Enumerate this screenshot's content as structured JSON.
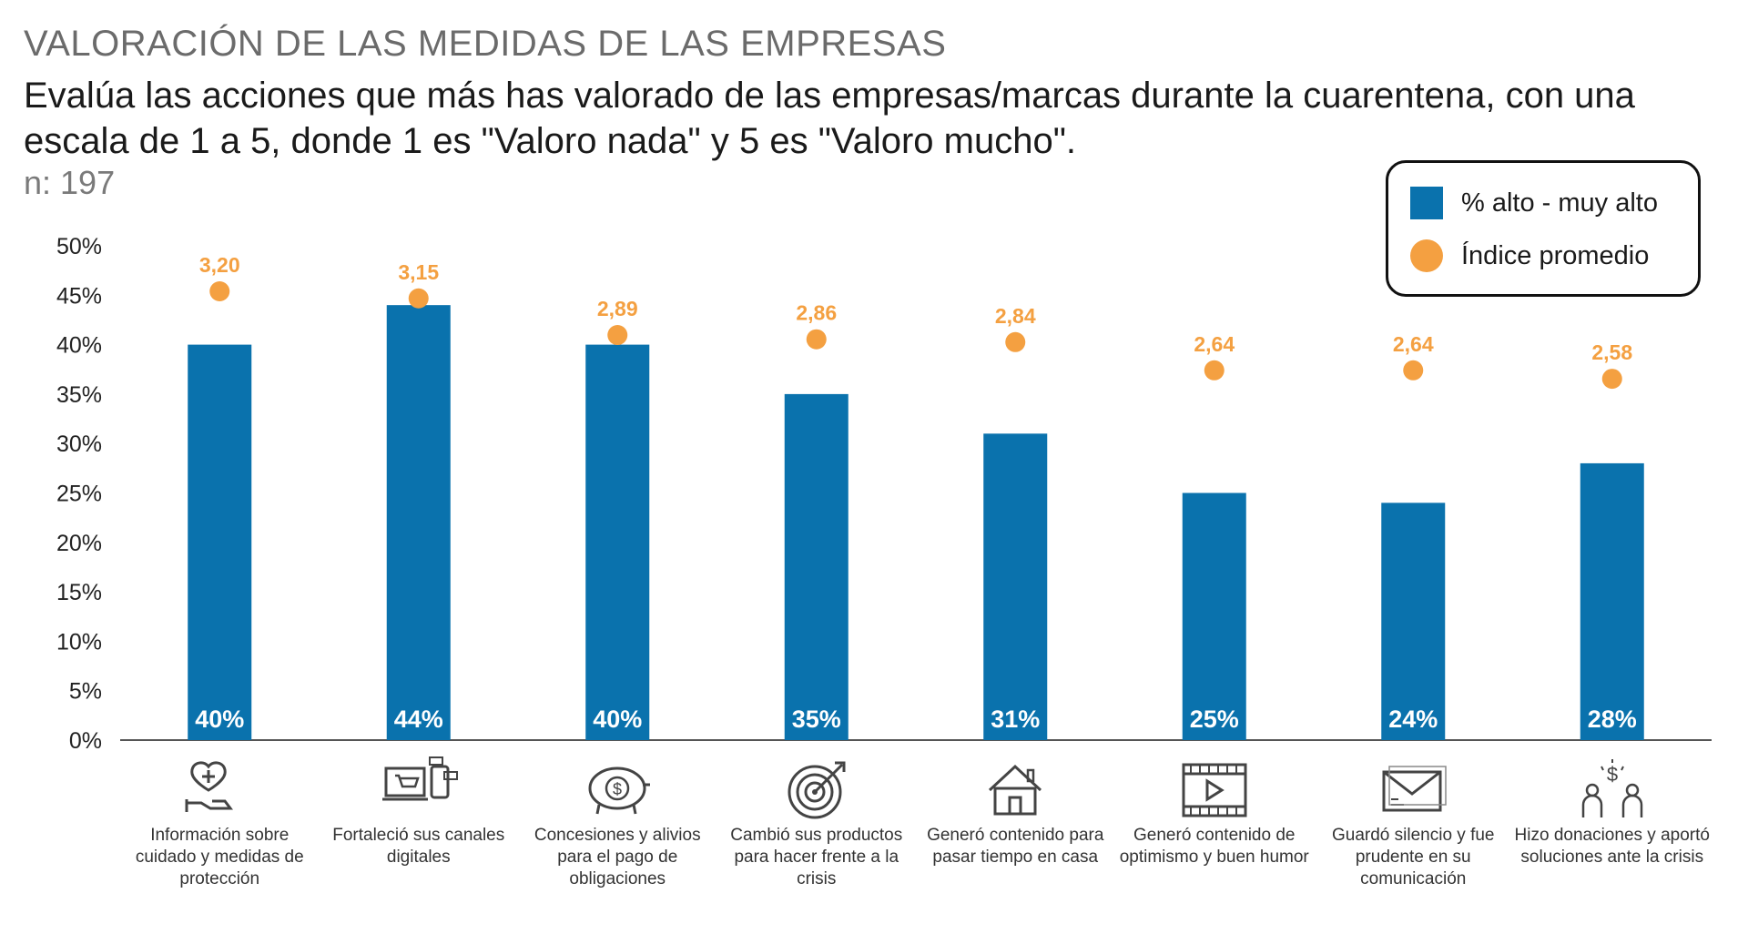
{
  "header": {
    "title": "VALORACIÓN DE LAS MEDIDAS DE LAS EMPRESAS",
    "subtitle": "Evalúa las acciones que más has valorado de las empresas/marcas durante la cuarentena, con una escala de 1 a 5, donde 1 es \"Valoro nada\" y 5 es \"Valoro mucho\".",
    "sample": "n: 197"
  },
  "legend": {
    "bar_label": "% alto - muy alto",
    "dot_label": "Índice promedio"
  },
  "colors": {
    "bar": "#0a72ad",
    "dot": "#f4a041",
    "axis": "#555555"
  },
  "chart_data": {
    "type": "bar",
    "title": "VALORACIÓN DE LAS MEDIDAS DE LAS EMPRESAS",
    "categories": [
      "Información sobre cuidado y medidas de protección",
      "Fortaleció sus canales digitales",
      "Concesiones y alivios para el pago de obligaciones",
      "Cambió sus productos para hacer frente a la crisis",
      "Generó contenido para pasar tiempo en casa",
      "Generó contenido de optimismo y buen humor",
      "Guardó silencio y fue prudente en su comunicación",
      "Hizo donaciones y aportó soluciones ante la crisis"
    ],
    "series": [
      {
        "name": "% alto - muy alto",
        "type": "bar",
        "values": [
          40,
          44,
          40,
          35,
          31,
          25,
          24,
          28
        ],
        "labels": [
          "40%",
          "44%",
          "40%",
          "35%",
          "31%",
          "25%",
          "24%",
          "28%"
        ]
      },
      {
        "name": "Índice promedio",
        "type": "scatter",
        "values": [
          3.2,
          3.15,
          2.89,
          2.86,
          2.84,
          2.64,
          2.64,
          2.58
        ],
        "labels": [
          "3,20",
          "3,15",
          "2,89",
          "2,86",
          "2,84",
          "2,64",
          "2,64",
          "2,58"
        ]
      }
    ],
    "ylim": [
      0,
      50
    ],
    "yticks": [
      "0%",
      "5%",
      "10%",
      "15%",
      "20%",
      "25%",
      "30%",
      "35%",
      "40%",
      "45%",
      "50%"
    ],
    "xlabel": "",
    "ylabel": "",
    "legend_position": "top-right",
    "icons": [
      "hand-heart-plus-icon",
      "laptop-cart-phone-icon",
      "piggy-bank-dollar-icon",
      "target-arrow-icon",
      "house-icon",
      "film-play-icon",
      "envelope-icon",
      "people-donation-icon"
    ]
  }
}
